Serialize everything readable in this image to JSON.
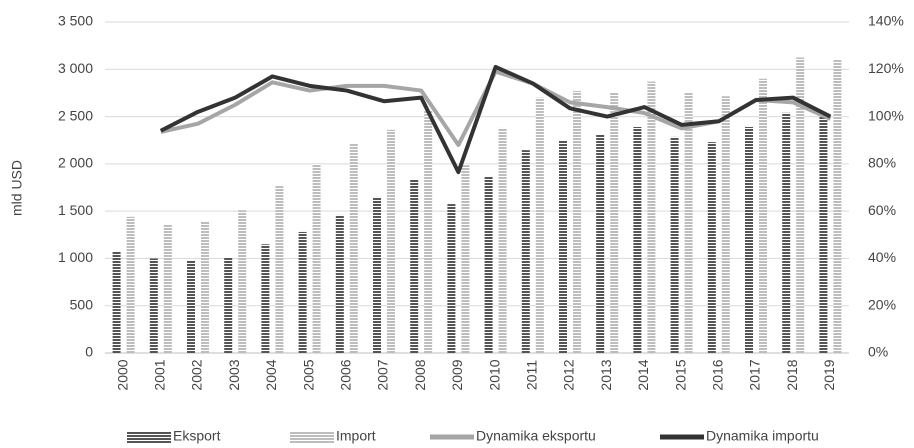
{
  "chart_data": {
    "type": "bar_line",
    "y_label": "mld USD",
    "categories": [
      "2000",
      "2001",
      "2002",
      "2003",
      "2004",
      "2005",
      "2006",
      "2007",
      "2008",
      "2009",
      "2010",
      "2011",
      "2012",
      "2013",
      "2014",
      "2015",
      "2016",
      "2017",
      "2018",
      "2019"
    ],
    "series": [
      {
        "name": "Eksport",
        "kind": "bar",
        "color": "#555555",
        "values": [
          1070,
          1000,
          980,
          1015,
          1150,
          1280,
          1460,
          1650,
          1830,
          1575,
          1870,
          2145,
          2250,
          2315,
          2390,
          2285,
          2230,
          2390,
          2540,
          2500
        ]
      },
      {
        "name": "Import",
        "kind": "bar",
        "color": "#bdbdbd",
        "values": [
          1440,
          1355,
          1395,
          1510,
          1765,
          2000,
          2220,
          2360,
          2560,
          2000,
          2380,
          2700,
          2770,
          2760,
          2870,
          2760,
          2715,
          2900,
          3125,
          3100
        ]
      },
      {
        "name": "Dynamika eksportu",
        "kind": "line",
        "axis": "y2",
        "color": "#a6a6a6",
        "values": [
          null,
          93.5,
          97,
          105,
          114.5,
          111,
          113,
          113,
          111,
          88,
          119,
          114,
          106,
          104,
          101.5,
          95,
          98,
          107,
          106,
          99
        ]
      },
      {
        "name": "Dynamika importu",
        "kind": "line",
        "axis": "y2",
        "color": "#333333",
        "values": [
          null,
          94,
          102,
          108,
          117,
          113,
          111,
          106.5,
          108,
          76.5,
          121,
          114,
          103.5,
          100,
          104,
          96.5,
          98,
          107,
          108,
          100
        ]
      }
    ],
    "ylim": [
      0,
      3500
    ],
    "yticks": [
      0,
      500,
      {
        "value": 1000,
        "label": "1 000"
      },
      {
        "value": 1500,
        "label": "1 500"
      },
      {
        "value": 2000,
        "label": "2 000"
      },
      {
        "value": 2500,
        "label": "2 500"
      },
      {
        "value": 3000,
        "label": "3 000"
      },
      {
        "value": 3500,
        "label": "3 500"
      }
    ],
    "y2lim": [
      0,
      140
    ],
    "y2ticks": [
      {
        "value": 0,
        "label": "0%"
      },
      {
        "value": 20,
        "label": "20%"
      },
      {
        "value": 40,
        "label": "40%"
      },
      {
        "value": 60,
        "label": "60%"
      },
      {
        "value": 80,
        "label": "80%"
      },
      {
        "value": 100,
        "label": "100%"
      },
      {
        "value": 120,
        "label": "120%"
      },
      {
        "value": 140,
        "label": "140%"
      }
    ],
    "grid": true,
    "legend": "bottom"
  }
}
